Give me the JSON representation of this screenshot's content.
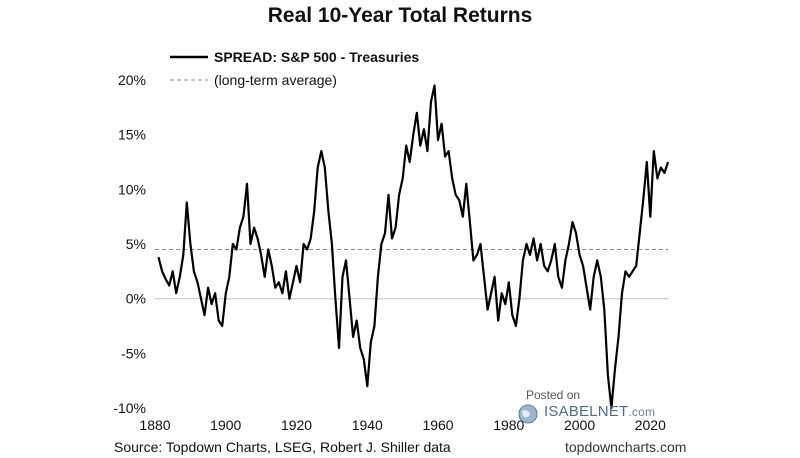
{
  "chart_data": {
    "type": "line",
    "title": "Real 10-Year Total Returns",
    "xlabel": "",
    "ylabel": "",
    "xlim": [
      1880,
      2025
    ],
    "ylim": [
      -10,
      20
    ],
    "x_ticks": [
      "1880",
      "1900",
      "1920",
      "1940",
      "1960",
      "1980",
      "2000",
      "2020"
    ],
    "y_ticks": [
      "-10%",
      "-5%",
      "0%",
      "5%",
      "10%",
      "15%",
      "20%"
    ],
    "legend_position": "top-left",
    "grid": false,
    "series": [
      {
        "name": "SPREAD: S&P 500 - Treasuries",
        "color": "#000000",
        "points": [
          [
            1881,
            3.8
          ],
          [
            1882,
            2.5
          ],
          [
            1883,
            1.8
          ],
          [
            1884,
            1.2
          ],
          [
            1885,
            2.5
          ],
          [
            1886,
            0.5
          ],
          [
            1887,
            2.0
          ],
          [
            1888,
            4.0
          ],
          [
            1889,
            8.8
          ],
          [
            1890,
            5.0
          ],
          [
            1891,
            2.5
          ],
          [
            1892,
            1.5
          ],
          [
            1893,
            0.0
          ],
          [
            1894,
            -1.5
          ],
          [
            1895,
            1.0
          ],
          [
            1896,
            -0.5
          ],
          [
            1897,
            0.5
          ],
          [
            1898,
            -2.0
          ],
          [
            1899,
            -2.5
          ],
          [
            1900,
            0.5
          ],
          [
            1901,
            2.0
          ],
          [
            1902,
            5.0
          ],
          [
            1903,
            4.5
          ],
          [
            1904,
            6.5
          ],
          [
            1905,
            7.5
          ],
          [
            1906,
            10.5
          ],
          [
            1907,
            5.0
          ],
          [
            1908,
            6.5
          ],
          [
            1909,
            5.5
          ],
          [
            1910,
            4.0
          ],
          [
            1911,
            2.0
          ],
          [
            1912,
            4.5
          ],
          [
            1913,
            3.0
          ],
          [
            1914,
            1.0
          ],
          [
            1915,
            1.5
          ],
          [
            1916,
            0.5
          ],
          [
            1917,
            2.5
          ],
          [
            1918,
            0.0
          ],
          [
            1919,
            1.5
          ],
          [
            1920,
            3.0
          ],
          [
            1921,
            1.5
          ],
          [
            1922,
            5.0
          ],
          [
            1923,
            4.5
          ],
          [
            1924,
            5.5
          ],
          [
            1925,
            8.0
          ],
          [
            1926,
            12.0
          ],
          [
            1927,
            13.5
          ],
          [
            1928,
            12.0
          ],
          [
            1929,
            8.0
          ],
          [
            1930,
            5.0
          ],
          [
            1931,
            0.0
          ],
          [
            1932,
            -4.5
          ],
          [
            1933,
            2.0
          ],
          [
            1934,
            3.5
          ],
          [
            1935,
            0.0
          ],
          [
            1936,
            -3.5
          ],
          [
            1937,
            -2.0
          ],
          [
            1938,
            -4.5
          ],
          [
            1939,
            -5.5
          ],
          [
            1940,
            -8.0
          ],
          [
            1941,
            -4.0
          ],
          [
            1942,
            -2.5
          ],
          [
            1943,
            2.0
          ],
          [
            1944,
            5.0
          ],
          [
            1945,
            6.0
          ],
          [
            1946,
            9.5
          ],
          [
            1947,
            5.5
          ],
          [
            1948,
            6.5
          ],
          [
            1949,
            9.5
          ],
          [
            1950,
            11.0
          ],
          [
            1951,
            14.0
          ],
          [
            1952,
            12.5
          ],
          [
            1953,
            15.0
          ],
          [
            1954,
            17.0
          ],
          [
            1955,
            14.0
          ],
          [
            1956,
            15.5
          ],
          [
            1957,
            13.5
          ],
          [
            1958,
            18.0
          ],
          [
            1959,
            19.5
          ],
          [
            1960,
            14.5
          ],
          [
            1961,
            16.0
          ],
          [
            1962,
            13.0
          ],
          [
            1963,
            13.5
          ],
          [
            1964,
            11.0
          ],
          [
            1965,
            9.5
          ],
          [
            1966,
            9.0
          ],
          [
            1967,
            7.5
          ],
          [
            1968,
            10.5
          ],
          [
            1969,
            7.0
          ],
          [
            1970,
            3.5
          ],
          [
            1971,
            4.0
          ],
          [
            1972,
            5.0
          ],
          [
            1973,
            2.0
          ],
          [
            1974,
            -1.0
          ],
          [
            1975,
            0.5
          ],
          [
            1976,
            2.0
          ],
          [
            1977,
            -2.0
          ],
          [
            1978,
            0.5
          ],
          [
            1979,
            -0.5
          ],
          [
            1980,
            1.5
          ],
          [
            1981,
            -1.5
          ],
          [
            1982,
            -2.5
          ],
          [
            1983,
            0.0
          ],
          [
            1984,
            3.5
          ],
          [
            1985,
            5.0
          ],
          [
            1986,
            4.0
          ],
          [
            1987,
            5.5
          ],
          [
            1988,
            3.5
          ],
          [
            1989,
            5.0
          ],
          [
            1990,
            3.0
          ],
          [
            1991,
            2.5
          ],
          [
            1992,
            3.5
          ],
          [
            1993,
            5.0
          ],
          [
            1994,
            2.0
          ],
          [
            1995,
            1.0
          ],
          [
            1996,
            3.5
          ],
          [
            1997,
            5.0
          ],
          [
            1998,
            7.0
          ],
          [
            1999,
            6.0
          ],
          [
            2000,
            4.0
          ],
          [
            2001,
            3.0
          ],
          [
            2002,
            1.0
          ],
          [
            2003,
            -1.0
          ],
          [
            2004,
            2.0
          ],
          [
            2005,
            3.5
          ],
          [
            2006,
            2.0
          ],
          [
            2007,
            -1.0
          ],
          [
            2008,
            -7.0
          ],
          [
            2009,
            -10.0
          ],
          [
            2010,
            -6.5
          ],
          [
            2011,
            -3.5
          ],
          [
            2012,
            0.5
          ],
          [
            2013,
            2.5
          ],
          [
            2014,
            2.0
          ],
          [
            2015,
            2.5
          ],
          [
            2016,
            3.0
          ],
          [
            2017,
            6.0
          ],
          [
            2018,
            9.0
          ],
          [
            2019,
            12.5
          ],
          [
            2020,
            7.5
          ],
          [
            2021,
            13.5
          ],
          [
            2022,
            11.0
          ],
          [
            2023,
            12.0
          ],
          [
            2024,
            11.5
          ],
          [
            2025,
            12.5
          ]
        ]
      },
      {
        "name": "(long-term average)",
        "color": "#888888",
        "style": "dashed",
        "points": [
          [
            1880,
            4.5
          ],
          [
            2025,
            4.5
          ]
        ]
      }
    ]
  },
  "footer": {
    "source": "Source: Topdown Charts, LSEG, Robert J. Shiller data",
    "site": "topdowncharts.com"
  },
  "watermark": {
    "posted": "Posted on",
    "brand": "ISABELNET",
    "suffix": ".com",
    "icon": "globe-icon"
  }
}
